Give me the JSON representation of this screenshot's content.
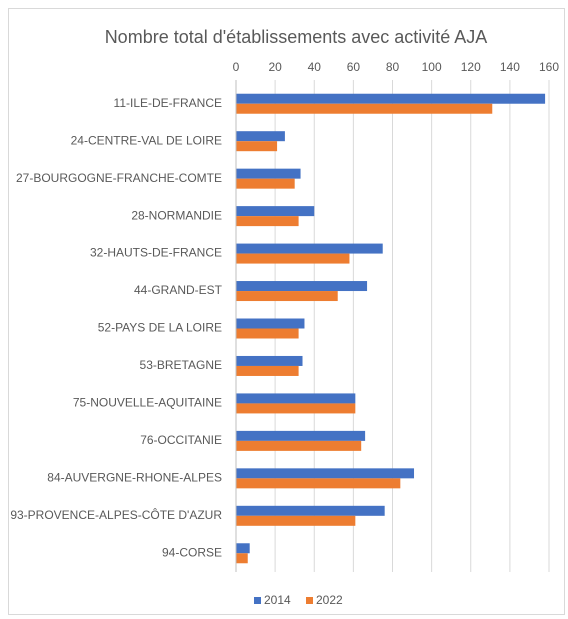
{
  "chart_data": {
    "type": "bar",
    "orientation": "horizontal",
    "title": "Nombre total d'établissements avec activité AJA",
    "categories": [
      "11-ILE-DE-FRANCE",
      "24-CENTRE-VAL DE LOIRE",
      "27-BOURGOGNE-FRANCHE-COMTE",
      "28-NORMANDIE",
      "32-HAUTS-DE-FRANCE",
      "44-GRAND-EST",
      "52-PAYS DE LA LOIRE",
      "53-BRETAGNE",
      "75-NOUVELLE-AQUITAINE",
      "76-OCCITANIE",
      "84-AUVERGNE-RHONE-ALPES",
      "93-PROVENCE-ALPES-CÔTE D'AZUR",
      "94-CORSE"
    ],
    "series": [
      {
        "name": "2014",
        "color": "#4472c4",
        "values": [
          158,
          25,
          33,
          40,
          75,
          67,
          35,
          34,
          61,
          66,
          91,
          76,
          7
        ]
      },
      {
        "name": "2022",
        "color": "#ed7d31",
        "values": [
          131,
          21,
          30,
          32,
          58,
          52,
          32,
          32,
          61,
          64,
          84,
          61,
          6
        ]
      }
    ],
    "xlim": [
      0,
      160
    ],
    "xticks": [
      0,
      20,
      40,
      60,
      80,
      100,
      120,
      140,
      160
    ],
    "grid": true,
    "legend": "bottom"
  }
}
